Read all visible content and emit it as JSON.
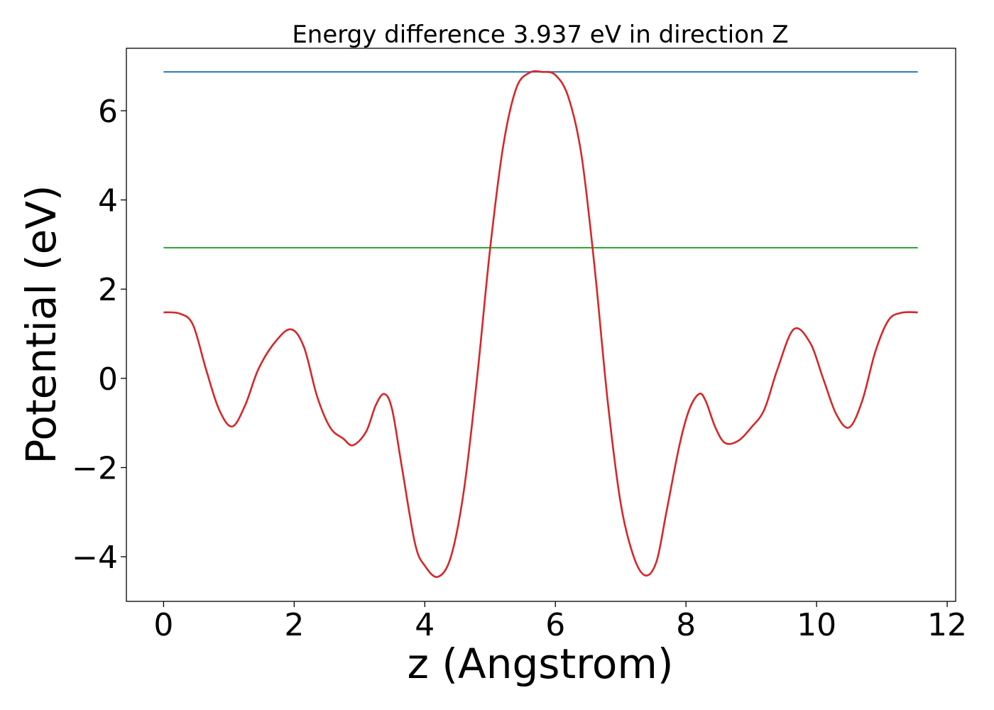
{
  "chart_data": {
    "type": "line",
    "title": "Energy difference 3.937 eV in direction Z",
    "xlabel": "z (Angstrom)",
    "ylabel": "Potential (eV)",
    "xlim": [
      -0.57,
      12.13
    ],
    "ylim": [
      -5.0,
      7.4
    ],
    "xticks": [
      0,
      2,
      4,
      6,
      8,
      10,
      12
    ],
    "yticks": [
      -4,
      -2,
      0,
      2,
      4,
      6
    ],
    "xtick_labels": [
      "0",
      "2",
      "4",
      "6",
      "8",
      "10",
      "12"
    ],
    "ytick_labels": [
      "−4",
      "−2",
      "0",
      "2",
      "4",
      "6"
    ],
    "grid": false,
    "series": [
      {
        "color": "#1f77b4",
        "x": [
          0.0,
          11.55
        ],
        "y": [
          6.87,
          6.87
        ]
      },
      {
        "color": "#2ca02c",
        "x": [
          0.0,
          11.55
        ],
        "y": [
          2.93,
          2.93
        ]
      },
      {
        "color": "#d62728",
        "x": [
          0.0,
          0.25,
          0.45,
          0.65,
          0.85,
          1.05,
          1.25,
          1.45,
          1.7,
          1.95,
          2.15,
          2.35,
          2.55,
          2.75,
          2.9,
          3.1,
          3.25,
          3.38,
          3.5,
          3.65,
          3.85,
          4.0,
          4.2,
          4.4,
          4.6,
          4.8,
          5.0,
          5.2,
          5.4,
          5.6,
          5.8,
          6.0,
          6.2,
          6.4,
          6.6,
          6.8,
          7.0,
          7.2,
          7.38,
          7.55,
          7.7,
          7.9,
          8.05,
          8.2,
          8.3,
          8.45,
          8.6,
          8.8,
          9.0,
          9.2,
          9.4,
          9.65,
          9.9,
          10.1,
          10.3,
          10.5,
          10.7,
          10.9,
          11.1,
          11.3,
          11.55
        ],
        "y": [
          1.48,
          1.45,
          1.2,
          0.2,
          -0.7,
          -1.08,
          -0.6,
          0.2,
          0.8,
          1.1,
          0.7,
          -0.4,
          -1.1,
          -1.35,
          -1.5,
          -1.2,
          -0.6,
          -0.35,
          -0.7,
          -2.0,
          -3.7,
          -4.2,
          -4.45,
          -4.0,
          -2.5,
          0.0,
          2.9,
          5.2,
          6.5,
          6.85,
          6.87,
          6.8,
          6.3,
          5.0,
          2.5,
          -0.5,
          -2.8,
          -4.0,
          -4.42,
          -4.1,
          -3.0,
          -1.5,
          -0.7,
          -0.35,
          -0.5,
          -1.1,
          -1.45,
          -1.4,
          -1.1,
          -0.7,
          0.2,
          1.1,
          0.8,
          0.0,
          -0.8,
          -1.1,
          -0.5,
          0.6,
          1.3,
          1.47,
          1.48
        ]
      }
    ]
  }
}
